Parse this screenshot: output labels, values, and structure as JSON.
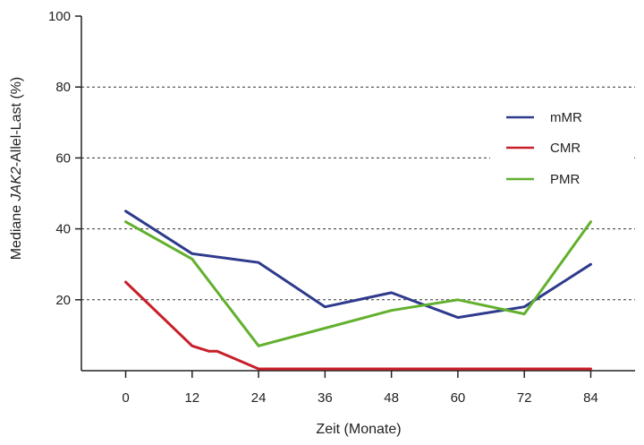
{
  "chart_data": {
    "type": "line",
    "xlabel": "Zeit (Monate)",
    "ylabel_parts": [
      "Mediane ",
      "JAK2",
      "-Allel-Last (%)"
    ],
    "x_ticks": [
      0,
      12,
      24,
      36,
      48,
      60,
      72,
      84
    ],
    "y_ticks": [
      20,
      40,
      60,
      80,
      100
    ],
    "xlim": [
      -8,
      92
    ],
    "ylim": [
      0,
      100
    ],
    "grid": "dashed horizontal at 20, 40, 60, 80",
    "legend_position": "right",
    "series": [
      {
        "name": "mMR",
        "color": "#2e3a8c",
        "x": [
          0,
          12,
          24,
          36,
          48,
          60,
          72,
          84
        ],
        "y": [
          45,
          33,
          30.5,
          18,
          22,
          15,
          18,
          30
        ]
      },
      {
        "name": "CMR",
        "color": "#c8202a",
        "x": [
          0,
          12,
          15,
          16.5,
          24,
          36,
          48,
          60,
          72,
          84
        ],
        "y": [
          25,
          7,
          5.5,
          5.5,
          0.5,
          0.5,
          0.5,
          0.5,
          0.5,
          0.5
        ]
      },
      {
        "name": "PMR",
        "color": "#62b02e",
        "x": [
          0,
          12,
          24,
          36,
          48,
          60,
          72,
          84
        ],
        "y": [
          42,
          31.5,
          7,
          12,
          17,
          20,
          16,
          42
        ]
      }
    ]
  }
}
